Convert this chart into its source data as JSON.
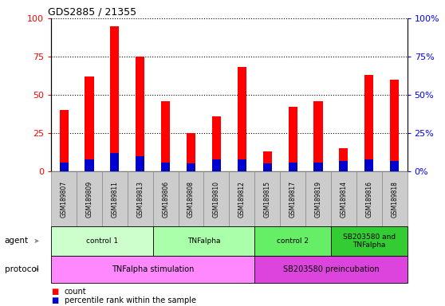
{
  "title": "GDS2885 / 21355",
  "samples": [
    "GSM189807",
    "GSM189809",
    "GSM189811",
    "GSM189813",
    "GSM189806",
    "GSM189808",
    "GSM189810",
    "GSM189812",
    "GSM189815",
    "GSM189817",
    "GSM189819",
    "GSM189814",
    "GSM189816",
    "GSM189818"
  ],
  "count_values": [
    40,
    62,
    95,
    75,
    46,
    25,
    36,
    68,
    13,
    42,
    46,
    15,
    63,
    60
  ],
  "percentile_values": [
    6,
    8,
    12,
    10,
    6,
    5,
    8,
    8,
    5,
    6,
    6,
    7,
    8,
    7
  ],
  "bar_color": "#ff0000",
  "percentile_color": "#0000cc",
  "ylim": [
    0,
    100
  ],
  "yticks": [
    0,
    25,
    50,
    75,
    100
  ],
  "agent_groups": [
    {
      "label": "control 1",
      "start": 0,
      "end": 4,
      "color": "#ccffcc"
    },
    {
      "label": "TNFalpha",
      "start": 4,
      "end": 8,
      "color": "#aaffaa"
    },
    {
      "label": "control 2",
      "start": 8,
      "end": 11,
      "color": "#66ee66"
    },
    {
      "label": "SB203580 and\nTNFalpha",
      "start": 11,
      "end": 14,
      "color": "#33cc33"
    }
  ],
  "protocol_groups": [
    {
      "label": "TNFalpha stimulation",
      "start": 0,
      "end": 8,
      "color": "#ff88ff"
    },
    {
      "label": "SB203580 preincubation",
      "start": 8,
      "end": 14,
      "color": "#dd44dd"
    }
  ],
  "legend_count_label": "count",
  "legend_percentile_label": "percentile rank within the sample",
  "agent_label": "agent",
  "protocol_label": "protocol"
}
